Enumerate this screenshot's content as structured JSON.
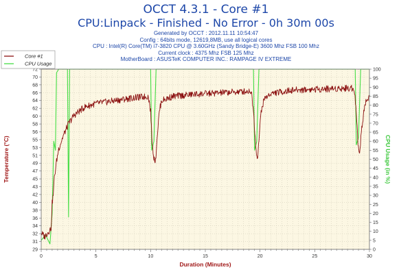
{
  "header": {
    "title": "OCCT 4.3.1 - Core #1",
    "subtitle": "CPU:Linpack - Finished - No Error - 0h 30m 00s",
    "info_lines": [
      "Generated by OCCT : 2012.11.11 10:54:47",
      "Config : 64bits mode, 12619,8MB, use all logical cores",
      "CPU : Intel(R) Core(TM) i7-3820 CPU @ 3.60GHz (Sandy Bridge-E) 3600 Mhz FSB 100 Mhz",
      "Current clock : 4375 Mhz FSB 125 Mhz",
      "MotherBoard : ASUSTeK COMPUTER INC.: RAMPAGE IV EXTREME"
    ]
  },
  "chart_data": {
    "type": "line",
    "xlabel": "Duration (Minutes)",
    "ylabel": "Temperature (°C)",
    "y2label": "CPU Usage (in %)",
    "xlim": [
      0,
      30
    ],
    "ylim": [
      29,
      72
    ],
    "y2lim": [
      0,
      100
    ],
    "x_ticks": [
      "0",
      "5",
      "10",
      "15",
      "20",
      "25",
      "30"
    ],
    "y_ticks": [
      "29",
      "31",
      "32",
      "34",
      "36",
      "38",
      "40",
      "42",
      "43",
      "45",
      "47",
      "49",
      "51",
      "53",
      "55",
      "56",
      "58",
      "60",
      "62",
      "64",
      "66",
      "68",
      "70",
      "72"
    ],
    "y2_ticks": [
      "0",
      "5",
      "10",
      "15",
      "20",
      "25",
      "30",
      "35",
      "40",
      "45",
      "50",
      "55",
      "60",
      "65",
      "70",
      "75",
      "80",
      "85",
      "90",
      "95",
      "100"
    ],
    "legend_position": "top-left",
    "series": [
      {
        "name": "Core #1",
        "color": "#8b1010",
        "axis": "left",
        "points": [
          [
            0.0,
            33
          ],
          [
            0.3,
            32
          ],
          [
            0.6,
            33
          ],
          [
            0.9,
            34
          ],
          [
            1.0,
            40
          ],
          [
            1.1,
            42
          ],
          [
            1.2,
            46
          ],
          [
            1.4,
            50
          ],
          [
            1.6,
            53
          ],
          [
            2.0,
            56
          ],
          [
            2.5,
            59
          ],
          [
            3.0,
            61
          ],
          [
            3.5,
            62
          ],
          [
            4.0,
            63
          ],
          [
            5.0,
            63.8
          ],
          [
            6.0,
            64.2
          ],
          [
            7.0,
            64.6
          ],
          [
            8.0,
            65.0
          ],
          [
            9.0,
            65.3
          ],
          [
            9.8,
            65.5
          ],
          [
            10.0,
            62
          ],
          [
            10.15,
            54
          ],
          [
            10.3,
            51
          ],
          [
            10.45,
            50
          ],
          [
            10.6,
            56
          ],
          [
            10.8,
            62
          ],
          [
            11.0,
            64.5
          ],
          [
            12.0,
            65.5
          ],
          [
            14.0,
            66.0
          ],
          [
            16.0,
            66.3
          ],
          [
            18.0,
            66.6
          ],
          [
            19.2,
            66.8
          ],
          [
            19.4,
            62
          ],
          [
            19.6,
            54
          ],
          [
            19.75,
            50.5
          ],
          [
            19.9,
            55
          ],
          [
            20.1,
            62
          ],
          [
            20.4,
            65
          ],
          [
            21.0,
            66.2
          ],
          [
            23.0,
            67.0
          ],
          [
            25.0,
            67.2
          ],
          [
            27.0,
            67.4
          ],
          [
            28.6,
            67.5
          ],
          [
            28.8,
            62
          ],
          [
            28.95,
            54
          ],
          [
            29.1,
            52
          ],
          [
            29.3,
            58
          ],
          [
            29.6,
            64
          ],
          [
            30.0,
            65.5
          ]
        ]
      },
      {
        "name": "CPU Usage",
        "color": "#44dd44",
        "axis": "right",
        "points": [
          [
            0.0,
            5
          ],
          [
            0.4,
            8
          ],
          [
            0.8,
            3
          ],
          [
            1.0,
            20
          ],
          [
            1.15,
            60
          ],
          [
            1.3,
            55
          ],
          [
            1.4,
            98
          ],
          [
            1.6,
            100
          ],
          [
            2.4,
            100
          ],
          [
            2.5,
            18
          ],
          [
            2.6,
            100
          ],
          [
            10.0,
            100
          ],
          [
            10.1,
            55
          ],
          [
            10.3,
            60
          ],
          [
            10.5,
            100
          ],
          [
            19.4,
            100
          ],
          [
            19.5,
            55
          ],
          [
            19.7,
            60
          ],
          [
            19.9,
            100
          ],
          [
            28.7,
            100
          ],
          [
            28.8,
            58
          ],
          [
            29.0,
            62
          ],
          [
            29.2,
            100
          ],
          [
            30.0,
            100
          ]
        ]
      }
    ]
  }
}
